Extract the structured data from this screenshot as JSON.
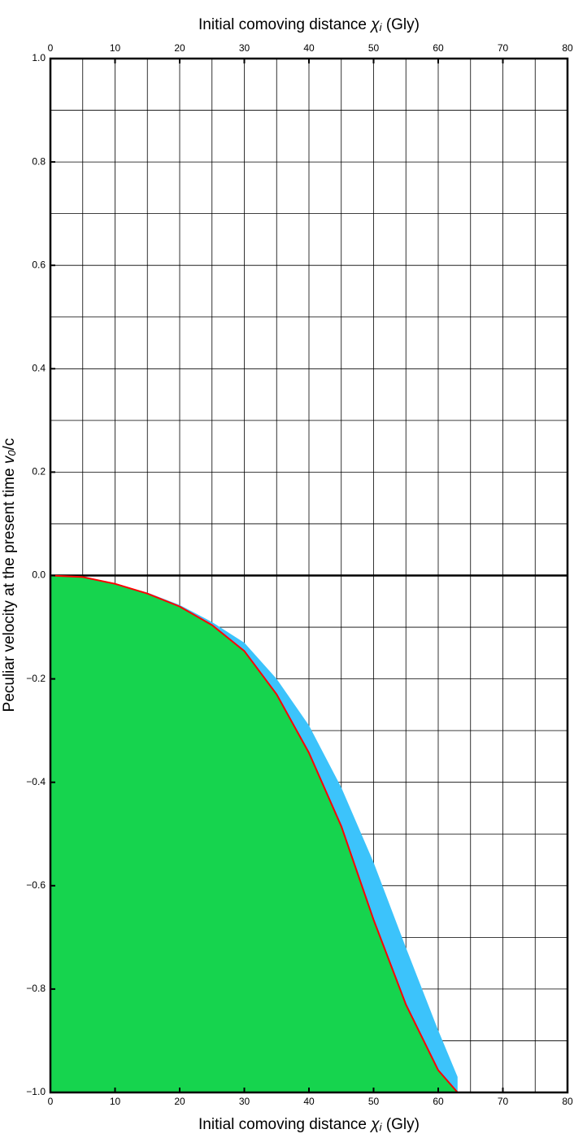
{
  "chart_data": {
    "type": "area",
    "xlabel": {
      "text": "Initial comoving distance ",
      "symbol": "χ",
      "subscript": "i",
      "unit": " (Gly)"
    },
    "ylabel": {
      "text": "Peculiar velocity at the present time ",
      "symbol": "v",
      "subscript": "0",
      "unit": "/c"
    },
    "x": [
      0,
      5,
      10,
      15,
      20,
      25,
      30,
      35,
      40,
      45,
      50,
      55,
      60,
      63
    ],
    "series": [
      {
        "color": "#3cc3fb",
        "kind": "band",
        "values": [
          0,
          -0.003,
          -0.016,
          -0.033,
          -0.057,
          -0.09,
          -0.13,
          -0.2,
          -0.29,
          -0.41,
          -0.555,
          -0.72,
          -0.88,
          -0.97
        ]
      },
      {
        "color": "#16d44e",
        "kind": "fill",
        "values": [
          0,
          -0.003,
          -0.016,
          -0.035,
          -0.06,
          -0.096,
          -0.146,
          -0.23,
          -0.343,
          -0.485,
          -0.666,
          -0.83,
          -0.957,
          -1.0
        ]
      },
      {
        "color": "#ff0000",
        "kind": "line",
        "values": [
          0,
          -0.003,
          -0.016,
          -0.035,
          -0.06,
          -0.096,
          -0.146,
          -0.23,
          -0.343,
          -0.485,
          -0.666,
          -0.83,
          -0.957,
          -1.0
        ]
      }
    ],
    "xlim": [
      0,
      80
    ],
    "ylim": [
      -1,
      1
    ],
    "xticks": [
      0,
      10,
      20,
      30,
      40,
      50,
      60,
      70,
      80
    ],
    "xminorticks": [
      5,
      15,
      25,
      35,
      45,
      55,
      65,
      75
    ],
    "yticks": [
      {
        "value": -1,
        "label": "−1.0"
      },
      {
        "value": -0.8,
        "label": "−0.8"
      },
      {
        "value": -0.6,
        "label": "−0.6"
      },
      {
        "value": -0.4,
        "label": "−0.4"
      },
      {
        "value": -0.2,
        "label": "−0.2"
      },
      {
        "value": 0,
        "label": "0.0"
      },
      0.2,
      0.4,
      0.6,
      0.8,
      {
        "value": 1,
        "label": "1.0"
      }
    ],
    "yminorticks": [
      -0.9,
      -0.7,
      -0.5,
      -0.3,
      -0.1,
      0.1,
      0.3,
      0.5,
      0.7,
      0.9
    ],
    "grid": true
  }
}
